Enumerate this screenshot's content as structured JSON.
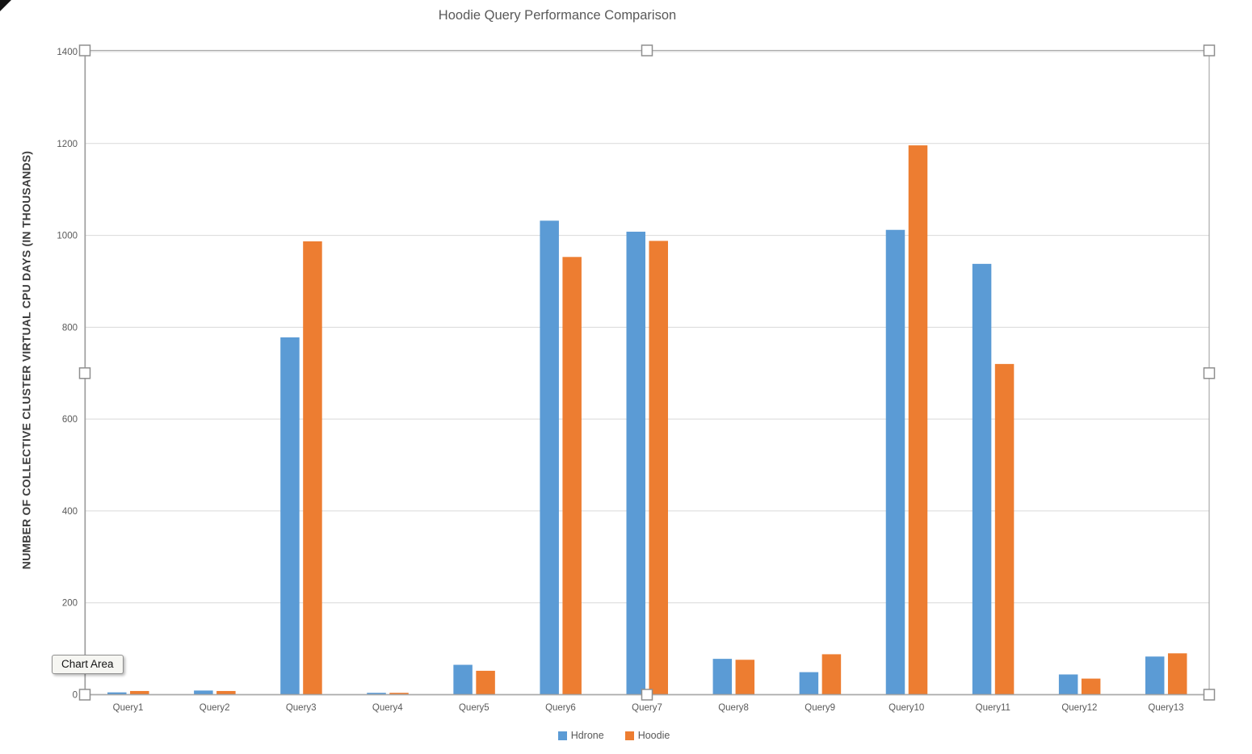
{
  "title": "Hoodie Query Performance Comparison",
  "y_axis_title": "NUMBER OF COLLECTIVE CLUSTER VIRTUAL CPU DAYS (IN THOUSANDS)",
  "tooltip": {
    "label": "Chart Area"
  },
  "colors": {
    "hdrone": "#5B9BD5",
    "hoodie": "#ED7D31",
    "gridline": "#D9D9D9",
    "axis_line": "#8c8c8c",
    "tick_text": "#595959",
    "title_text": "#595959",
    "selection_border": "#ababab",
    "handle_fill": "#ffffff",
    "handle_border": "#8f8f8f"
  },
  "chart_data": {
    "type": "bar",
    "title": "Hoodie Query Performance Comparison",
    "xlabel": "",
    "ylabel": "NUMBER OF COLLECTIVE CLUSTER VIRTUAL CPU DAYS (IN THOUSANDS)",
    "ylim": [
      0,
      1400
    ],
    "yticks": [
      0,
      200,
      400,
      600,
      800,
      1000,
      1200,
      1400
    ],
    "grid": true,
    "legend_position": "bottom",
    "categories": [
      "Query1",
      "Query2",
      "Query3",
      "Query4",
      "Query5",
      "Query6",
      "Query7",
      "Query8",
      "Query9",
      "Query10",
      "Query11",
      "Query12",
      "Query13"
    ],
    "series": [
      {
        "name": "Hdrone",
        "color": "#5B9BD5",
        "values": [
          5,
          9,
          778,
          4,
          65,
          1032,
          1008,
          78,
          49,
          1012,
          938,
          44,
          83
        ]
      },
      {
        "name": "Hoodie",
        "color": "#ED7D31",
        "values": [
          8,
          8,
          987,
          4,
          52,
          953,
          988,
          76,
          88,
          1196,
          720,
          35,
          90
        ]
      }
    ]
  }
}
